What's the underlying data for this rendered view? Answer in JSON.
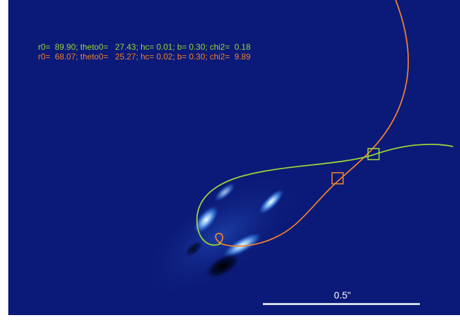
{
  "annotations": [
    {
      "text": "r0=  89.90; theto0=   27.43; hc= 0.01; b= 0.30; chi2=  0.18"
    },
    {
      "text": "r0=  68.07; theto0=   25.27; hc= 0.02; b= 0.30; chi2=  9.89"
    }
  ],
  "scale_bar": {
    "label": "0.5\""
  }
}
